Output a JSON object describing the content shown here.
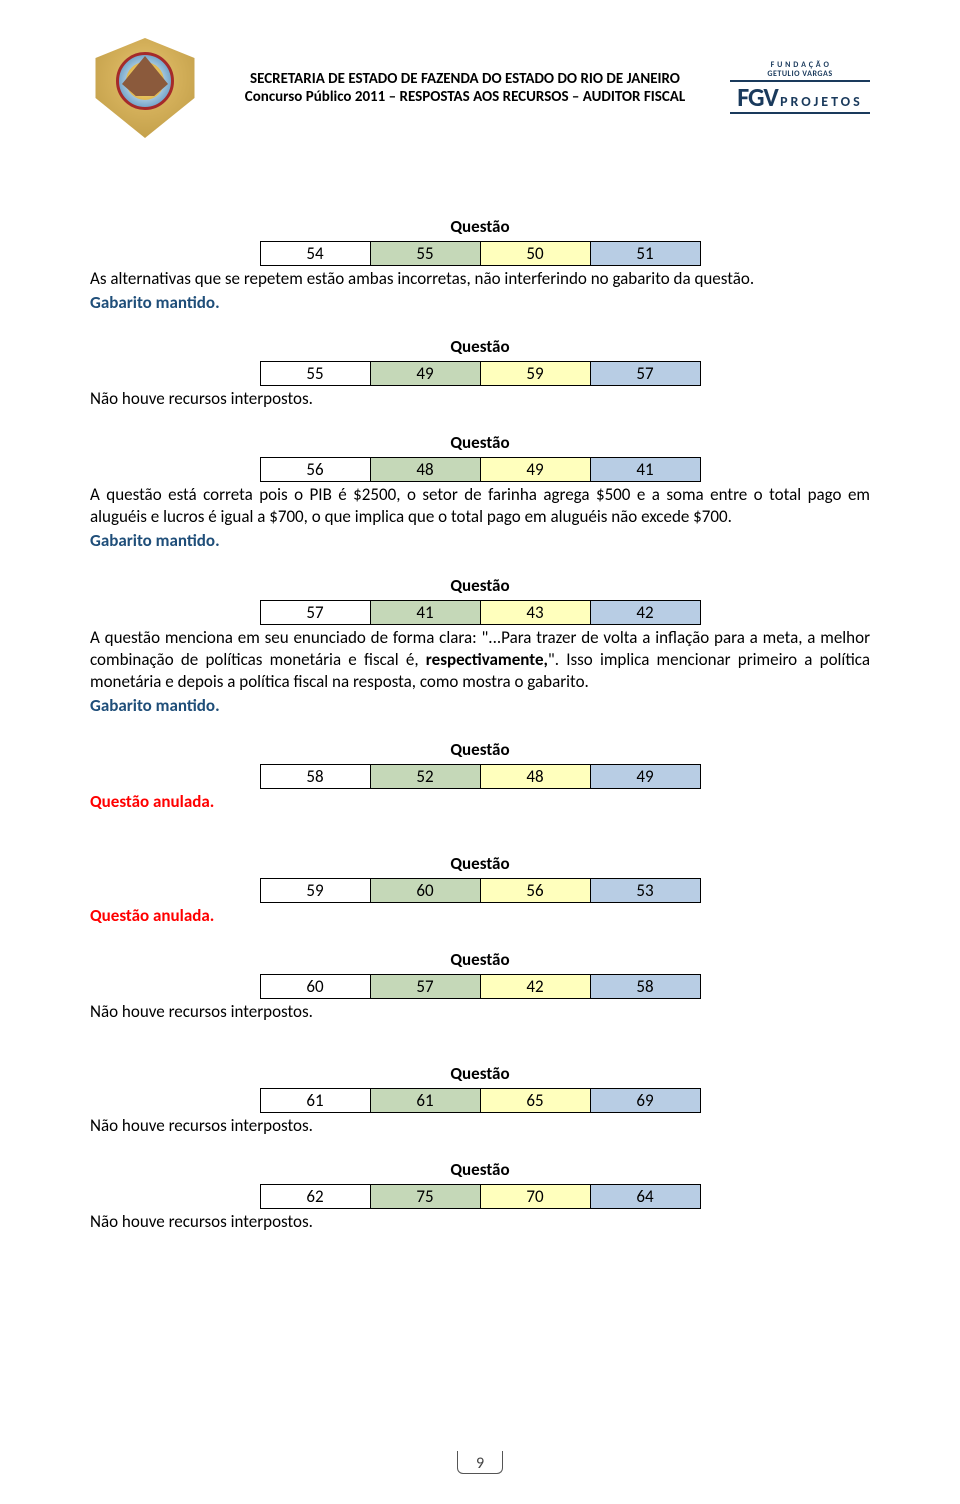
{
  "header": {
    "line1": "SECRETARIA DE ESTADO DE FAZENDA DO ESTADO DO RIO DE JANEIRO",
    "line2_pre": "Concurso Público 2011 – ",
    "line2_bold": "RESPOSTAS AOS RECURSOS",
    "line2_post": " – AUDITOR FISCAL",
    "fgv_top": "F U N D A Ç Ã O",
    "fgv_mid": "GETULIO VARGAS",
    "fgv_main": "FGV",
    "fgv_sub": "PROJETOS"
  },
  "labels": {
    "questao": "Questão",
    "mantido": "Gabarito mantido.",
    "anulada": "Questão anulada.",
    "naohouve": "Não houve recursos interpostos."
  },
  "blocks": [
    {
      "cells": [
        "54",
        "55",
        "50",
        "51"
      ],
      "before": null,
      "after": {
        "type": "text",
        "value": "As alternativas que se repetem estão ambas incorretas, não interferindo no gabarito da questão."
      },
      "status": "mantido"
    },
    {
      "cells": [
        "55",
        "49",
        "59",
        "57"
      ],
      "before": {
        "type": "naohouve"
      },
      "after": null,
      "status": null
    },
    {
      "cells": [
        "56",
        "48",
        "49",
        "41"
      ],
      "before": null,
      "after": {
        "type": "text",
        "value": "A questão está correta pois o PIB é $2500, o setor de farinha agrega $500 e a soma entre o total pago em aluguéis e lucros é igual a $700, o que implica que o total pago em aluguéis não excede $700."
      },
      "status": "mantido"
    },
    {
      "cells": [
        "57",
        "41",
        "43",
        "42"
      ],
      "before": null,
      "after": {
        "type": "richtext",
        "parts": [
          {
            "t": "A questão menciona em seu enunciado de forma clara: \"...Para trazer de volta a inflação para a meta, a melhor combinação de políticas monetária e fiscal é, ",
            "b": false
          },
          {
            "t": "respectivamente,",
            "b": true
          },
          {
            "t": "\". Isso implica mencionar primeiro a política monetária e depois a política fiscal na resposta, como mostra o gabarito.",
            "b": false
          }
        ]
      },
      "status": "mantido"
    },
    {
      "cells": [
        "58",
        "52",
        "48",
        "49"
      ],
      "before": {
        "type": "anulada"
      },
      "after": null,
      "status": null,
      "gap_after": 40
    },
    {
      "cells": [
        "59",
        "60",
        "56",
        "53"
      ],
      "before": {
        "type": "anulada"
      },
      "after": null,
      "status": null
    },
    {
      "cells": [
        "60",
        "57",
        "42",
        "58"
      ],
      "before": {
        "type": "naohouve"
      },
      "after": null,
      "status": null,
      "gap_after": 40
    },
    {
      "cells": [
        "61",
        "61",
        "65",
        "69"
      ],
      "before": {
        "type": "naohouve"
      },
      "after": null,
      "status": null
    },
    {
      "cells": [
        "62",
        "75",
        "70",
        "64"
      ],
      "before": {
        "type": "naohouve"
      },
      "after": null,
      "status": null
    }
  ],
  "page_number": "9",
  "colors": {
    "c0": "#ffffff",
    "c1": "#c5d8b8",
    "c2": "#ffffbd",
    "c3": "#b8cde4",
    "mantido": "#1f4e79",
    "anulada": "#ff0000",
    "fgv": "#1a3a5c"
  }
}
